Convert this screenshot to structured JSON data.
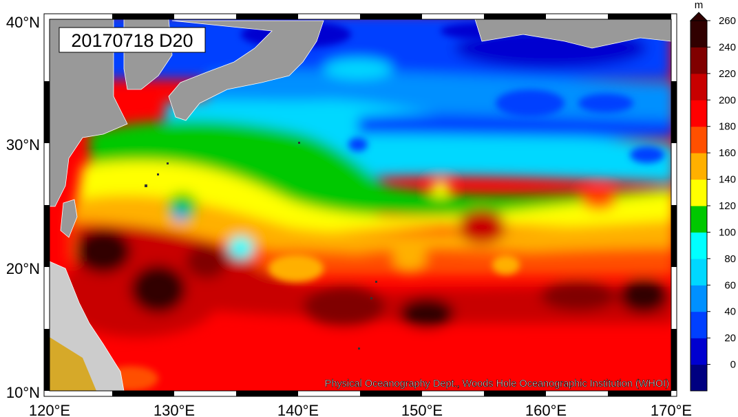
{
  "map": {
    "date_label": "20170718 D20",
    "credit": "Physical Oceanography Dept., Woods Hole Oceanographic Institution (WHOI)",
    "lat_labels": [
      "40°N",
      "30°N",
      "20°N",
      "10°N"
    ],
    "lon_labels": [
      "120°E",
      "130°E",
      "140°E",
      "150°E",
      "160°E",
      "170°E"
    ],
    "land_color": "#999999"
  },
  "colorbar": {
    "unit": "m",
    "tick_labels": [
      "260",
      "240",
      "220",
      "200",
      "180",
      "160",
      "140",
      "120",
      "100",
      "80",
      "60",
      "40",
      "20",
      "0"
    ],
    "colors": [
      "#000080",
      "#0000d0",
      "#0040ff",
      "#0090ff",
      "#00d8ff",
      "#00ffff",
      "#00c800",
      "#ffff00",
      "#ffb000",
      "#ff5000",
      "#ff0000",
      "#c80000",
      "#800000",
      "#300000"
    ]
  }
}
